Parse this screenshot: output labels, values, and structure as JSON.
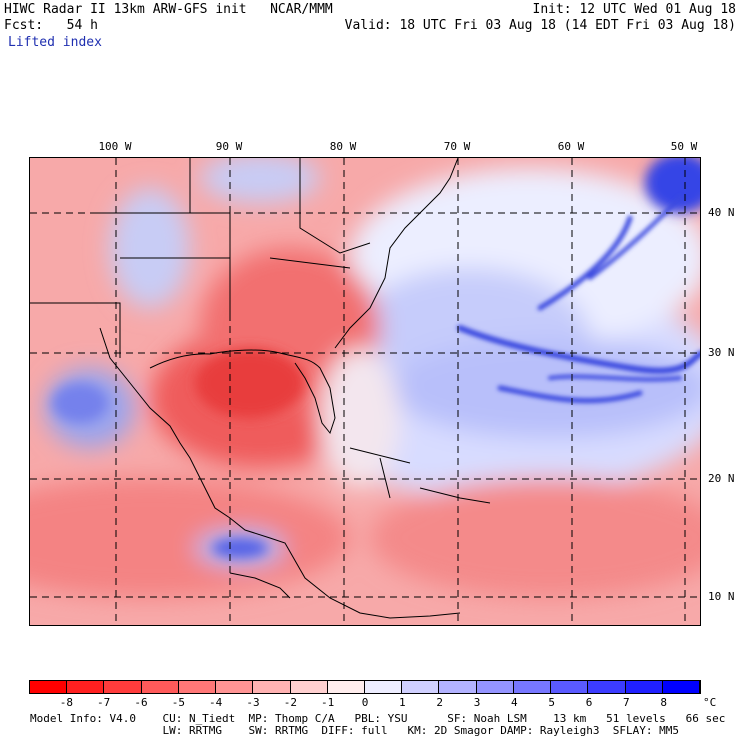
{
  "header": {
    "line1_left": "HIWC Radar II 13km ARW-GFS init   NCAR/MMM",
    "line1_right": "Init: 12 UTC Wed 01 Aug 18",
    "line2_left": "Fcst:   54 h",
    "line2_right": "Valid: 18 UTC Fri 03 Aug 18 (14 EDT Fri 03 Aug 18)",
    "field_name": "Lifted index"
  },
  "map": {
    "longitude_labels": [
      "100 W",
      "90 W",
      "80 W",
      "70 W",
      "60 W",
      "50 W"
    ],
    "latitude_labels": [
      "40 N",
      "30 N",
      "20 N",
      "10 N"
    ],
    "colors": {
      "unstable": "#f04040",
      "neutral": "#ffffff",
      "stable": "#3040e0"
    }
  },
  "colorbar": {
    "labels": [
      "-8",
      "-7",
      "-6",
      "-5",
      "-4",
      "-3",
      "-2",
      "-1",
      "0",
      "1",
      "2",
      "3",
      "4",
      "5",
      "6",
      "7",
      "8"
    ],
    "unit": "°C",
    "colors": [
      "#ff0000",
      "#ff2020",
      "#ff3c3c",
      "#ff5a5a",
      "#ff7777",
      "#ff9494",
      "#ffb2b2",
      "#ffd0d0",
      "#ffeded",
      "#ededff",
      "#d0d0ff",
      "#b2b2ff",
      "#9494ff",
      "#7777ff",
      "#5a5aff",
      "#3c3cff",
      "#2020ff",
      "#0000ff"
    ]
  },
  "model_info": {
    "line1": "Model Info: V4.0    CU: N_Tiedt  MP: Thomp C/A   PBL: YSU      SF: Noah LSM    13 km   51 levels   66 sec",
    "line2": "                    LW: RRTMG    SW: RRTMG  DIFF: full   KM: 2D Smagor DAMP: Rayleigh3  SFLAY: MM5"
  }
}
